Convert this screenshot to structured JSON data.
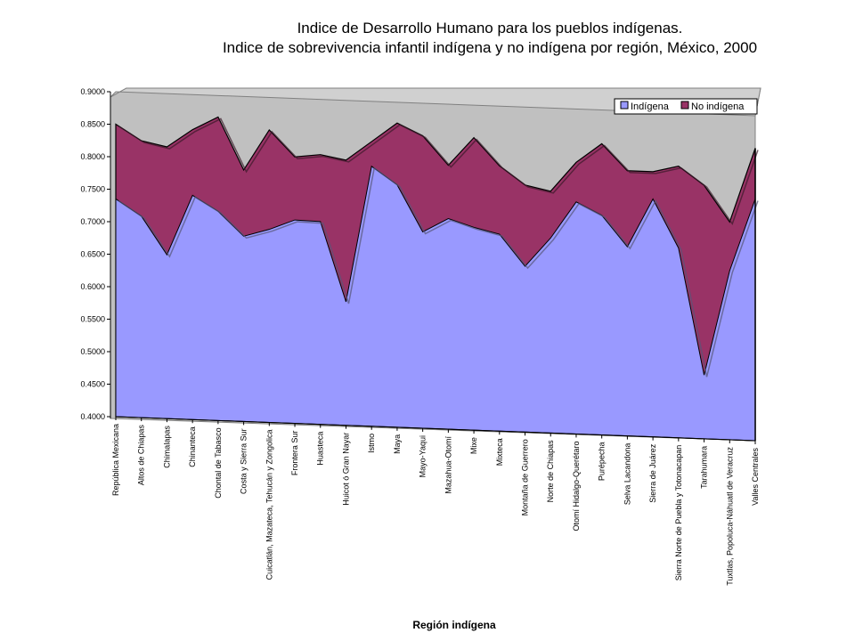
{
  "title_line1": "Indice de Desarrollo Humano para los pueblos indígenas.",
  "title_line2": "Indice de sobrevivencia infantil indígena y no indígena por región, México, 2000",
  "chart_data": {
    "type": "area",
    "title": "Indice de Desarrollo Humano para los pueblos indígenas. Indice de sobrevivencia infantil indígena y no indígena por región, México, 2000",
    "xlabel": "Región indígena",
    "ylabel": "",
    "ylim": [
      0.4,
      0.9
    ],
    "yticks": [
      "0.4000",
      "0.4500",
      "0.5000",
      "0.5500",
      "0.6000",
      "0.6500",
      "0.7000",
      "0.7500",
      "0.8000",
      "0.8500",
      "0.9000"
    ],
    "legend_position": "top-right",
    "grid": false,
    "categories": [
      "República Mexicana",
      "Altos de Chiapas",
      "Chimalapas",
      "Chinanteca",
      "Chontal de Tabasco",
      "Costa y Sierra Sur",
      "Cuicatlán, Mazateca, Tehucán y Zongolica",
      "Frontera Sur",
      "Huasteca",
      "Huicot ó Gran Nayar",
      "Istmo",
      "Maya",
      "Mayo-Yaqui",
      "Mazahua-Otomí",
      "Mixe",
      "Mixteca",
      "Montaña de Guerrero",
      "Norte de Chiapas",
      "Otomí Hidalgo-Querétaro",
      "Purépecha",
      "Selva Lacandona",
      "Sierra de Juárez",
      "Sierra Norte de Puebla y Totonacapan",
      "Tarahumara",
      "Tuxtlas, Popoluca-Náhuatl de Veracruz",
      "Valles Centrales"
    ],
    "series": [
      {
        "name": "Indígena",
        "color": "#9999ff",
        "values": [
          0.735,
          0.71,
          0.652,
          0.745,
          0.722,
          0.685,
          0.697,
          0.713,
          0.712,
          0.59,
          0.8,
          0.773,
          0.702,
          0.724,
          0.712,
          0.703,
          0.655,
          0.7,
          0.757,
          0.738,
          0.691,
          0.766,
          0.692,
          0.498,
          0.66,
          0.772
        ]
      },
      {
        "name": "No indígena",
        "color": "#993366",
        "values": [
          0.85,
          0.826,
          0.818,
          0.846,
          0.867,
          0.787,
          0.85,
          0.81,
          0.815,
          0.808,
          0.838,
          0.868,
          0.85,
          0.806,
          0.85,
          0.808,
          0.78,
          0.772,
          0.818,
          0.848,
          0.808,
          0.808,
          0.818,
          0.79,
          0.735,
          0.85
        ]
      }
    ]
  }
}
